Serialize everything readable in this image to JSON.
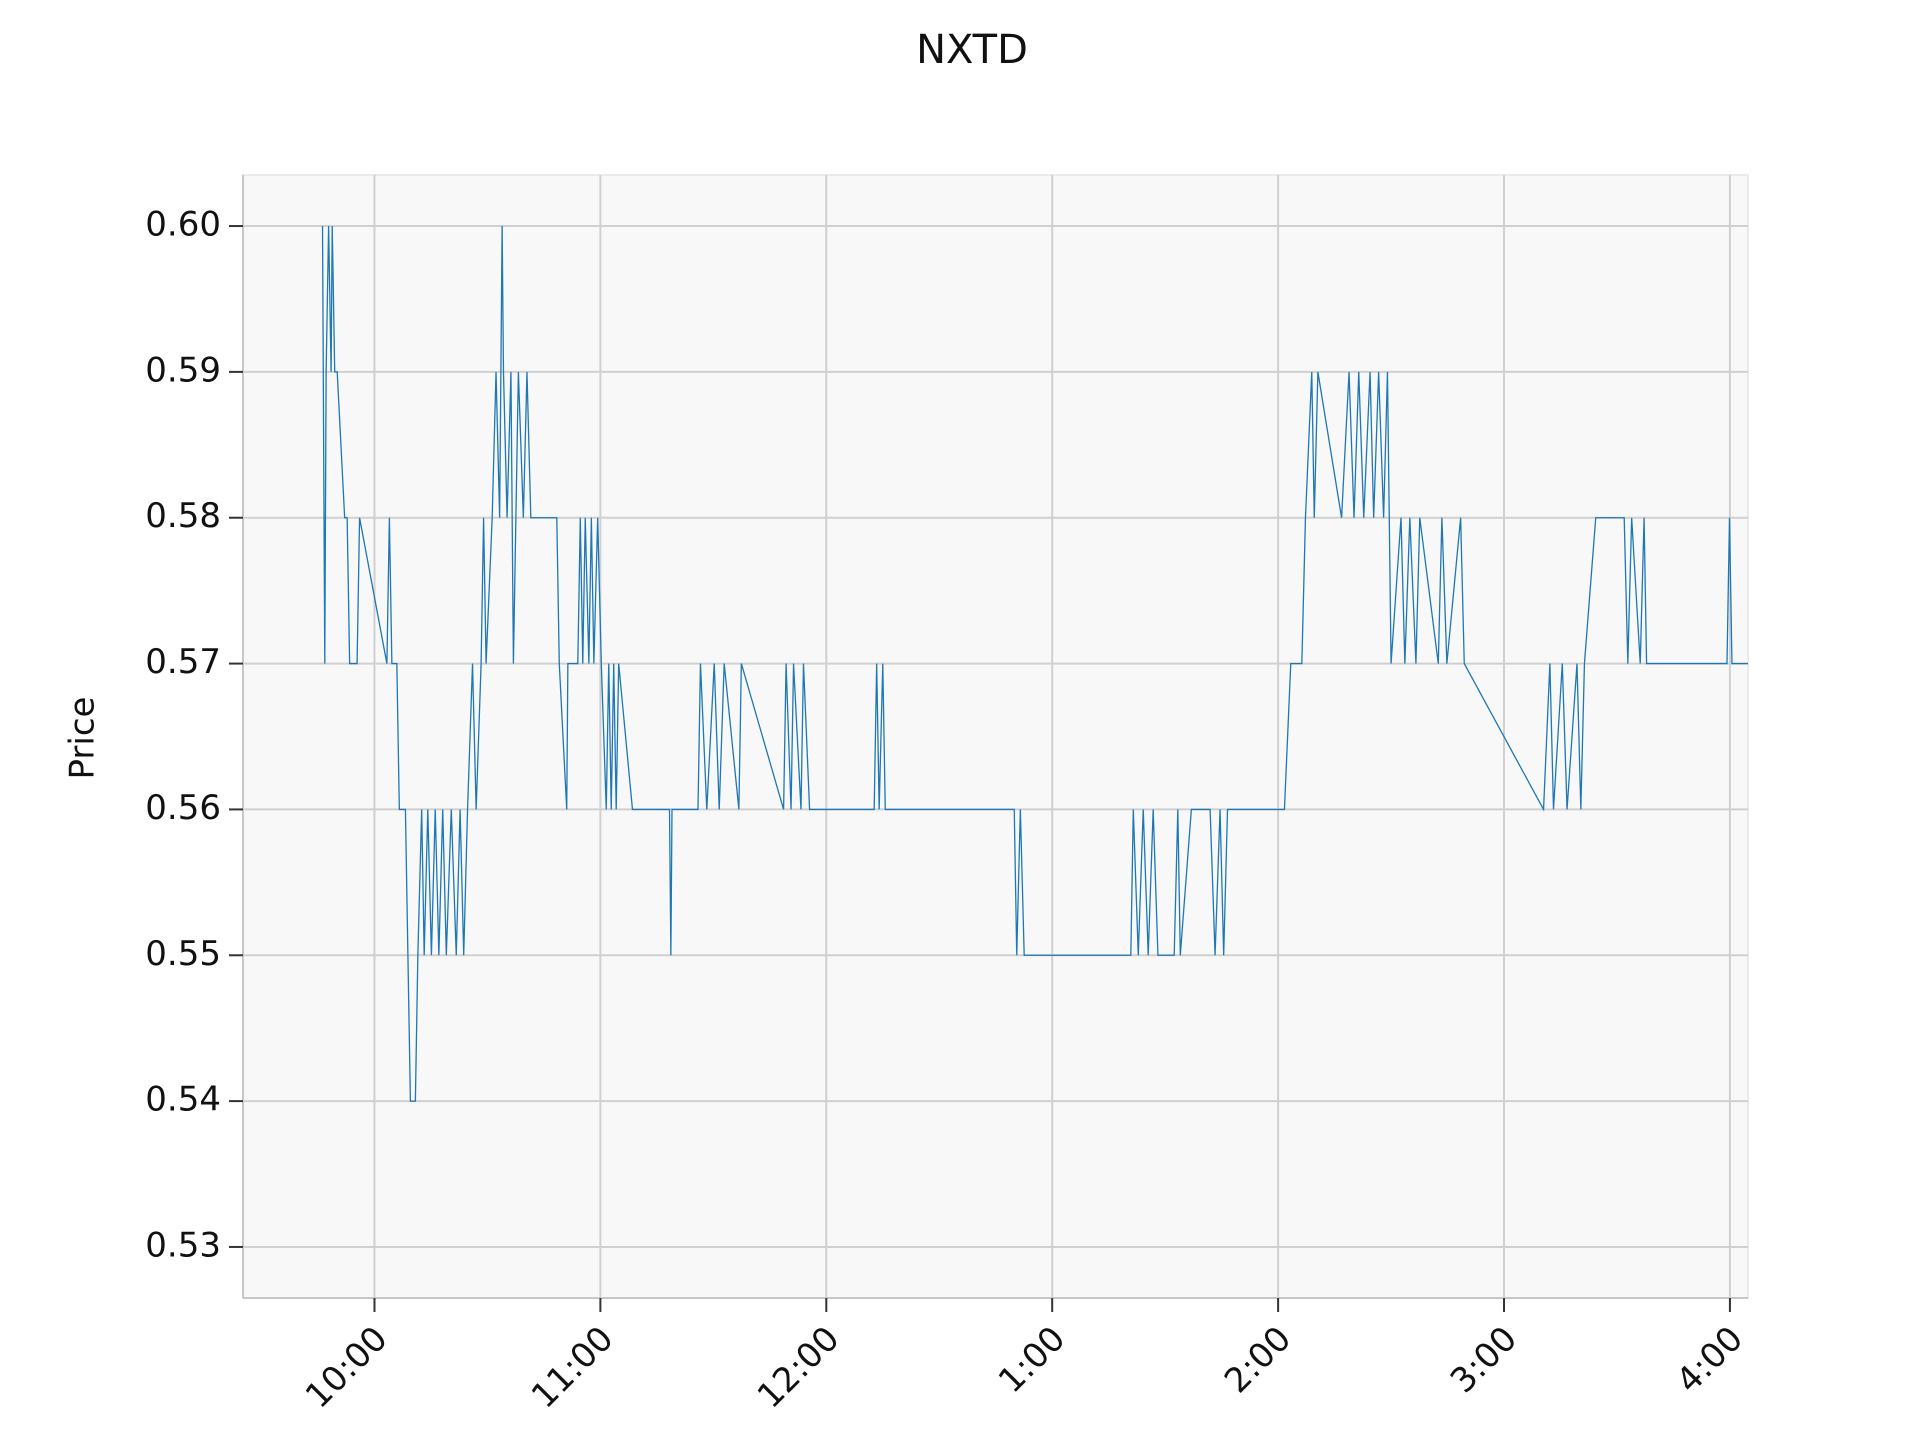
{
  "chart_data": {
    "type": "line",
    "title": "NXTD",
    "y_label": "Price",
    "color": "#1f77b4",
    "grid": true,
    "x": [
      9.77,
      9.78,
      9.786,
      9.797,
      9.808,
      9.813,
      9.824,
      9.835,
      9.868,
      9.879,
      9.89,
      9.923,
      9.934,
      10.055,
      10.066,
      10.077,
      10.099,
      10.11,
      10.137,
      10.148,
      10.159,
      10.181,
      10.192,
      10.209,
      10.22,
      10.236,
      10.252,
      10.269,
      10.285,
      10.302,
      10.318,
      10.34,
      10.362,
      10.379,
      10.395,
      10.412,
      10.434,
      10.45,
      10.472,
      10.483,
      10.494,
      10.521,
      10.538,
      10.554,
      10.565,
      10.571,
      10.587,
      10.604,
      10.615,
      10.637,
      10.659,
      10.675,
      10.692,
      10.807,
      10.818,
      10.851,
      10.856,
      10.9,
      10.911,
      10.922,
      10.933,
      10.949,
      10.96,
      10.971,
      10.988,
      11.004,
      11.026,
      11.037,
      11.048,
      11.059,
      11.07,
      11.081,
      11.142,
      11.306,
      11.312,
      11.317,
      11.432,
      11.443,
      11.471,
      11.504,
      11.526,
      11.548,
      11.613,
      11.624,
      11.811,
      11.822,
      11.844,
      11.855,
      11.888,
      11.899,
      11.926,
      12.212,
      12.223,
      12.234,
      12.25,
      12.261,
      12.832,
      12.843,
      12.859,
      12.876,
      13.348,
      13.359,
      13.381,
      13.403,
      13.425,
      13.447,
      13.468,
      13.54,
      13.556,
      13.567,
      13.616,
      13.699,
      13.721,
      13.743,
      13.759,
      13.776,
      14.028,
      14.056,
      14.105,
      14.121,
      14.149,
      14.16,
      14.176,
      14.281,
      14.314,
      14.336,
      14.357,
      14.379,
      14.407,
      14.423,
      14.445,
      14.467,
      14.484,
      14.5,
      14.544,
      14.561,
      14.583,
      14.61,
      14.627,
      14.709,
      14.725,
      14.747,
      14.808,
      14.824,
      15.175,
      15.203,
      15.219,
      15.258,
      15.279,
      15.323,
      15.34,
      15.356,
      15.406,
      15.532,
      15.548,
      15.565,
      15.603,
      15.62,
      15.631,
      15.987,
      15.998,
      16.009,
      16.08
    ],
    "values": [
      0.6,
      0.57,
      0.59,
      0.6,
      0.59,
      0.6,
      0.59,
      0.59,
      0.58,
      0.58,
      0.57,
      0.57,
      0.58,
      0.57,
      0.58,
      0.57,
      0.57,
      0.56,
      0.56,
      0.55,
      0.54,
      0.54,
      0.55,
      0.56,
      0.55,
      0.56,
      0.55,
      0.56,
      0.55,
      0.56,
      0.55,
      0.56,
      0.55,
      0.56,
      0.55,
      0.56,
      0.57,
      0.56,
      0.57,
      0.58,
      0.57,
      0.58,
      0.59,
      0.58,
      0.6,
      0.59,
      0.58,
      0.59,
      0.57,
      0.59,
      0.58,
      0.59,
      0.58,
      0.58,
      0.57,
      0.56,
      0.57,
      0.57,
      0.58,
      0.57,
      0.58,
      0.57,
      0.58,
      0.57,
      0.58,
      0.57,
      0.56,
      0.57,
      0.56,
      0.57,
      0.56,
      0.57,
      0.56,
      0.56,
      0.55,
      0.56,
      0.56,
      0.57,
      0.56,
      0.57,
      0.56,
      0.57,
      0.56,
      0.57,
      0.56,
      0.57,
      0.56,
      0.57,
      0.56,
      0.57,
      0.56,
      0.56,
      0.57,
      0.56,
      0.57,
      0.56,
      0.56,
      0.55,
      0.56,
      0.55,
      0.55,
      0.56,
      0.55,
      0.56,
      0.55,
      0.56,
      0.55,
      0.55,
      0.56,
      0.55,
      0.56,
      0.56,
      0.55,
      0.56,
      0.55,
      0.56,
      0.56,
      0.57,
      0.57,
      0.58,
      0.59,
      0.58,
      0.59,
      0.58,
      0.59,
      0.58,
      0.59,
      0.58,
      0.59,
      0.58,
      0.59,
      0.58,
      0.59,
      0.57,
      0.58,
      0.57,
      0.58,
      0.57,
      0.58,
      0.57,
      0.58,
      0.57,
      0.58,
      0.57,
      0.56,
      0.57,
      0.56,
      0.57,
      0.56,
      0.57,
      0.56,
      0.57,
      0.58,
      0.58,
      0.57,
      0.58,
      0.57,
      0.58,
      0.57,
      0.57,
      0.58,
      0.57,
      0.57
    ],
    "xlim": [
      9.418,
      16.08
    ],
    "xticks": [
      {
        "value": 10,
        "label": "10:00"
      },
      {
        "value": 11,
        "label": "11:00"
      },
      {
        "value": 12,
        "label": "12:00"
      },
      {
        "value": 13,
        "label": "1:00"
      },
      {
        "value": 14,
        "label": "2:00"
      },
      {
        "value": 15,
        "label": "3:00"
      },
      {
        "value": 16,
        "label": "4:00"
      }
    ],
    "ylim": [
      0.5265,
      0.6035
    ],
    "yticks": [
      {
        "value": 0.53,
        "label": "0.53"
      },
      {
        "value": 0.54,
        "label": "0.54"
      },
      {
        "value": 0.55,
        "label": "0.55"
      },
      {
        "value": 0.56,
        "label": "0.56"
      },
      {
        "value": 0.57,
        "label": "0.57"
      },
      {
        "value": 0.58,
        "label": "0.58"
      },
      {
        "value": 0.59,
        "label": "0.59"
      },
      {
        "value": 0.6,
        "label": "0.60"
      }
    ]
  }
}
